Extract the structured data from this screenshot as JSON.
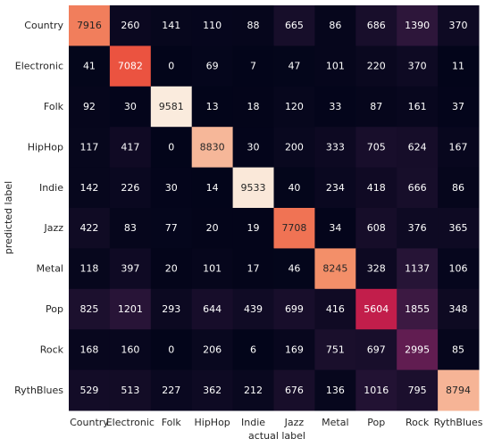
{
  "chart_data": {
    "type": "heatmap",
    "title": "",
    "xlabel": "actual label",
    "ylabel": "predicted label",
    "x_categories": [
      "Country",
      "Electronic",
      "Folk",
      "HipHop",
      "Indie",
      "Jazz",
      "Metal",
      "Pop",
      "Rock",
      "RythBlues"
    ],
    "y_categories": [
      "Country",
      "Electronic",
      "Folk",
      "HipHop",
      "Indie",
      "Jazz",
      "Metal",
      "Pop",
      "Rock",
      "RythBlues"
    ],
    "values": [
      [
        7916,
        260,
        141,
        110,
        88,
        665,
        86,
        686,
        1390,
        370
      ],
      [
        41,
        7082,
        0,
        69,
        7,
        47,
        101,
        220,
        370,
        11
      ],
      [
        92,
        30,
        9581,
        13,
        18,
        120,
        33,
        87,
        161,
        37
      ],
      [
        117,
        417,
        0,
        8830,
        30,
        200,
        333,
        705,
        624,
        167
      ],
      [
        142,
        226,
        30,
        14,
        9533,
        40,
        234,
        418,
        666,
        86
      ],
      [
        422,
        83,
        77,
        20,
        19,
        7708,
        34,
        608,
        376,
        365
      ],
      [
        118,
        397,
        20,
        101,
        17,
        46,
        8245,
        328,
        1137,
        106
      ],
      [
        825,
        1201,
        293,
        644,
        439,
        699,
        416,
        5604,
        1855,
        348
      ],
      [
        168,
        160,
        0,
        206,
        6,
        169,
        751,
        697,
        2995,
        85
      ],
      [
        529,
        513,
        227,
        362,
        212,
        676,
        136,
        1016,
        795,
        8794
      ]
    ],
    "value_range": [
      0,
      9581
    ],
    "colormap": "rocket",
    "legend": "none"
  }
}
